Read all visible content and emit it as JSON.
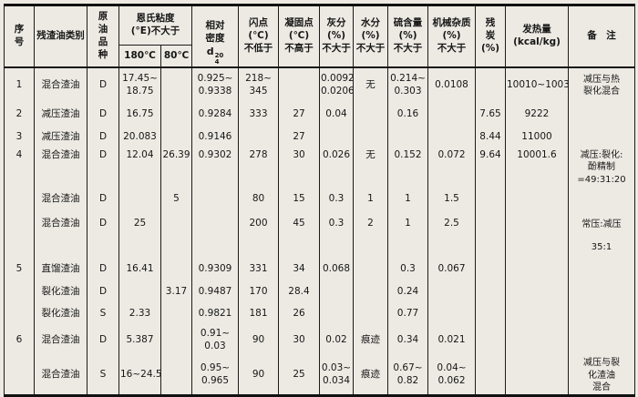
{
  "colors": {
    "paper": "#eceae3",
    "ink": "#161616",
    "border": "#1c1c1c"
  },
  "table": {
    "column_keys": [
      "seq",
      "category",
      "crude",
      "visc180",
      "visc80",
      "density",
      "flash",
      "freeze",
      "ash",
      "water",
      "sulfur",
      "mech",
      "carbon",
      "heat",
      "remark"
    ],
    "header": {
      "seq": "序\n号",
      "category": "残渣油类别",
      "crude": "原\n油\n品\n种",
      "viscosity": {
        "title": "恩氏粘度\n(°E)不大于",
        "sub": [
          "180℃",
          "80℃"
        ]
      },
      "density": {
        "line1": "相对",
        "line2": "密度",
        "sym": "d",
        "sup": "20",
        "sub": "4"
      },
      "flash": "闪点\n(℃)\n不低于",
      "freeze": "凝固点\n(℃)\n不高于",
      "ash": "灰分\n(%)\n不大于",
      "water": "水分\n(%)\n不大于",
      "sulfur": "硫含量\n(%)\n不大于",
      "mech": "机械杂质\n(%)\n不大于",
      "carbon": "残\n炭\n(%)",
      "heat": "发热量\n(kcal/kg)",
      "remark": "备　注"
    },
    "rows": [
      [
        "1",
        "混合渣油",
        "D",
        "17.45~\n18.75",
        "",
        "0.925~\n0.9338",
        "218~\n345",
        "",
        "0.0092\n0.0206",
        "无",
        "0.214~\n0.303",
        "0.0108",
        "",
        "10010~10030",
        "减压与热\n裂化混合"
      ],
      [
        "2",
        "减压渣油",
        "D",
        "16.75",
        "",
        "0.9284",
        "333",
        "27",
        "0.04",
        "",
        "0.16",
        "",
        "7.65",
        "9222",
        ""
      ],
      [
        "3",
        "减压渣油",
        "D",
        "20.083",
        "",
        "0.9146",
        "",
        "27",
        "",
        "",
        "",
        "",
        "8.44",
        "11000",
        ""
      ],
      [
        "4",
        "混合渣油",
        "D",
        "12.04",
        "26.39",
        "0.9302",
        "278",
        "30",
        "0.026",
        "无",
        "0.152",
        "0.072",
        "9.64",
        "10001.6",
        "减压:裂化:\n酚精制\n=49:31:20"
      ],
      [
        "",
        "混合渣油",
        "D",
        "",
        "5",
        "",
        "80",
        "15",
        "0.3",
        "1",
        "1",
        "1.5",
        "",
        "",
        ""
      ],
      [
        "",
        "混合渣油",
        "D",
        "25",
        "",
        "",
        "200",
        "45",
        "0.3",
        "2",
        "1",
        "2.5",
        "",
        "",
        "常压:减压"
      ],
      [
        "",
        "",
        "",
        "",
        "",
        "",
        "",
        "",
        "",
        "",
        "",
        "",
        "",
        "",
        "35:1"
      ],
      [
        "5",
        "直馏渣油",
        "D",
        "16.41",
        "",
        "0.9309",
        "331",
        "34",
        "0.068",
        "",
        "0.3",
        "0.067",
        "",
        "",
        ""
      ],
      [
        "",
        "裂化渣油",
        "D",
        "",
        "3.17",
        "0.9487",
        "170",
        "28.4",
        "",
        "",
        "0.24",
        "",
        "",
        "",
        ""
      ],
      [
        "",
        "裂化渣油",
        "S",
        "2.33",
        "",
        "0.9821",
        "181",
        "26",
        "",
        "",
        "0.77",
        "",
        "",
        "",
        ""
      ],
      [
        "6",
        "混合渣油",
        "D",
        "5.387",
        "",
        "0.91~\n0.03",
        "90",
        "30",
        "0.02",
        "痕迹",
        "0.34",
        "0.021",
        "",
        "",
        ""
      ],
      [
        "",
        "混合渣油",
        "S",
        "16~24.5",
        "",
        "0.95~\n0.965",
        "90",
        "25",
        "0.03~\n0.034",
        "痕迹",
        "0.67~\n0.82",
        "0.04~\n0.062",
        "",
        "",
        "减压与裂\n化渣油\n混合"
      ]
    ]
  }
}
